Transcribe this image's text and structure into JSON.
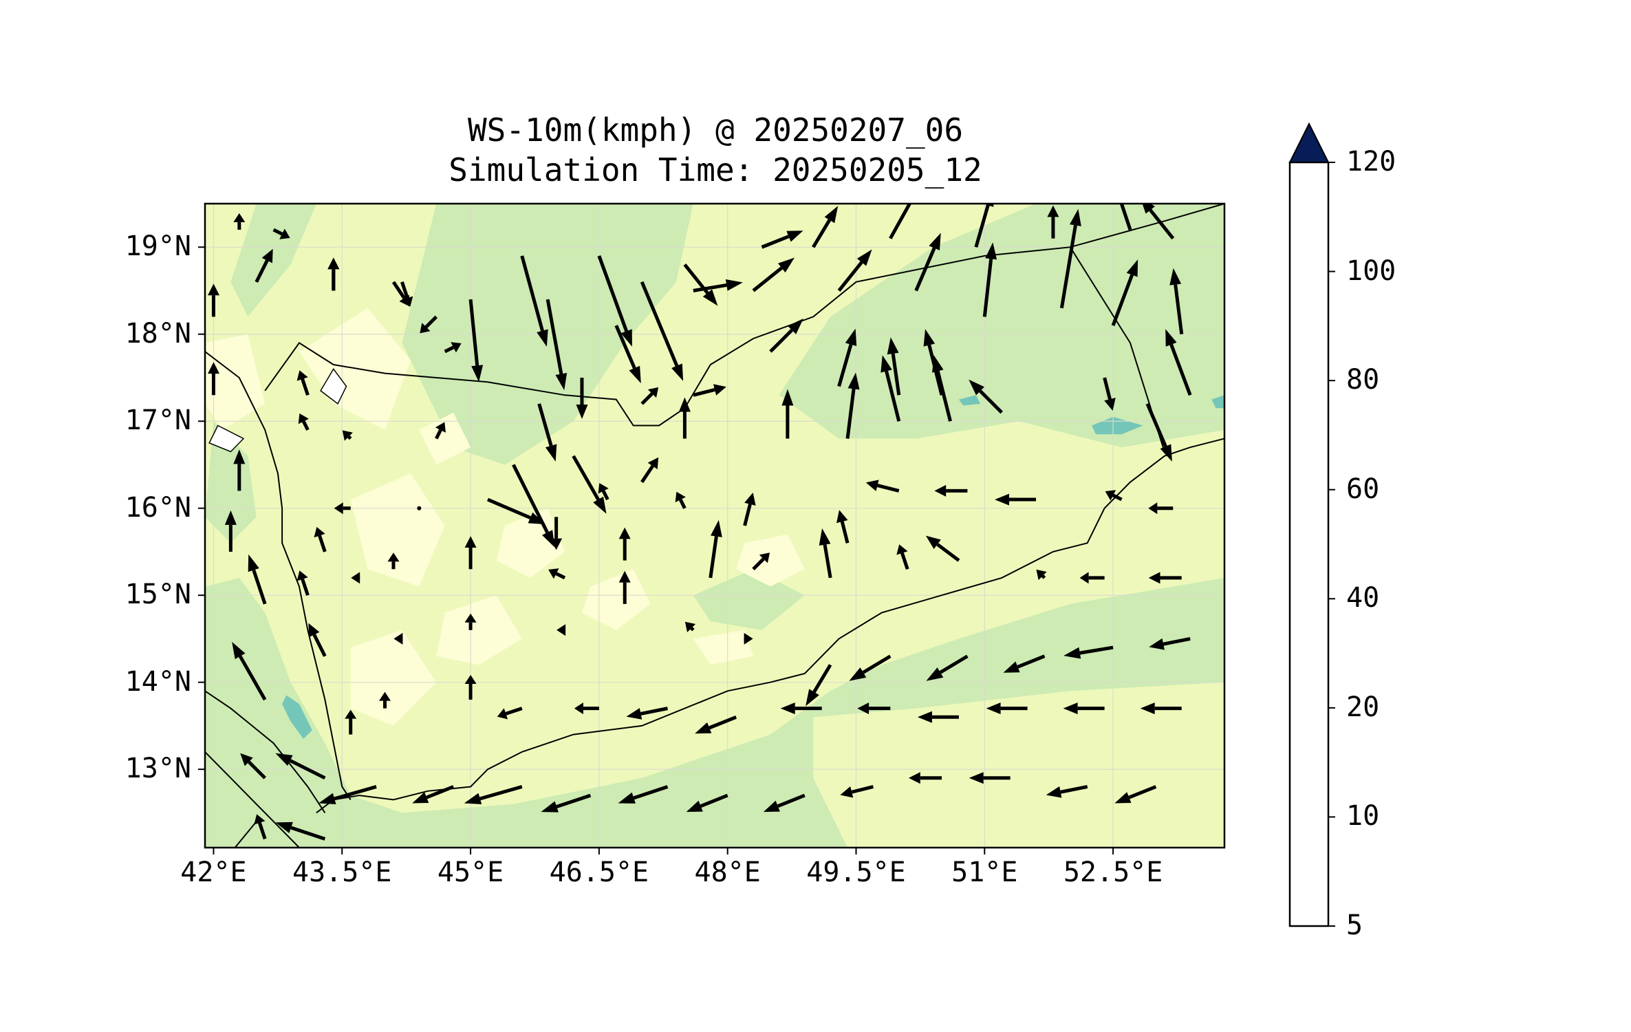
{
  "title": {
    "line1": "WS-10m(kmph) @ 20250207_06",
    "line2": "Simulation Time: 20250205_12"
  },
  "map": {
    "type": "wind-speed-contour-with-vectors",
    "lon_range": [
      41.9,
      53.8
    ],
    "lat_range": [
      12.1,
      19.5
    ],
    "x_ticks": [
      {
        "value": 42.0,
        "label": "42°E"
      },
      {
        "value": 43.5,
        "label": "43.5°E"
      },
      {
        "value": 45.0,
        "label": "45°E"
      },
      {
        "value": 46.5,
        "label": "46.5°E"
      },
      {
        "value": 48.0,
        "label": "48°E"
      },
      {
        "value": 49.5,
        "label": "49.5°E"
      },
      {
        "value": 51.0,
        "label": "51°E"
      },
      {
        "value": 52.5,
        "label": "52.5°E"
      }
    ],
    "y_ticks": [
      {
        "value": 13,
        "label": "13°N"
      },
      {
        "value": 14,
        "label": "14°N"
      },
      {
        "value": 15,
        "label": "15°N"
      },
      {
        "value": 16,
        "label": "16°N"
      },
      {
        "value": 17,
        "label": "17°N"
      },
      {
        "value": 18,
        "label": "18°N"
      },
      {
        "value": 19,
        "label": "19°N"
      }
    ],
    "grid": true
  },
  "colorbar": {
    "levels": [
      5,
      10,
      20,
      40,
      60,
      80,
      100,
      120
    ],
    "labels": [
      "5",
      "10",
      "20",
      "40",
      "60",
      "80",
      "100",
      "120"
    ],
    "colors": [
      "#ffffd9",
      "#edf8b1",
      "#c7e9b4",
      "#7fcdbb",
      "#41b6c4",
      "#2c7fb8",
      "#253494",
      "#081d58"
    ],
    "extend": "max"
  },
  "colors": {
    "band_lt10": "#fdfdd6",
    "band_10_20": "#eef8bb",
    "band_20_40": "#cdebb3",
    "band_40_60": "#74c6b8",
    "band_60_80": "#2ca5c2",
    "band_80_100": "#2464ab",
    "band_100_120": "#1e2d7f",
    "band_gt120": "#0a1f52",
    "coast": "#000000",
    "arrow": "#000000"
  }
}
